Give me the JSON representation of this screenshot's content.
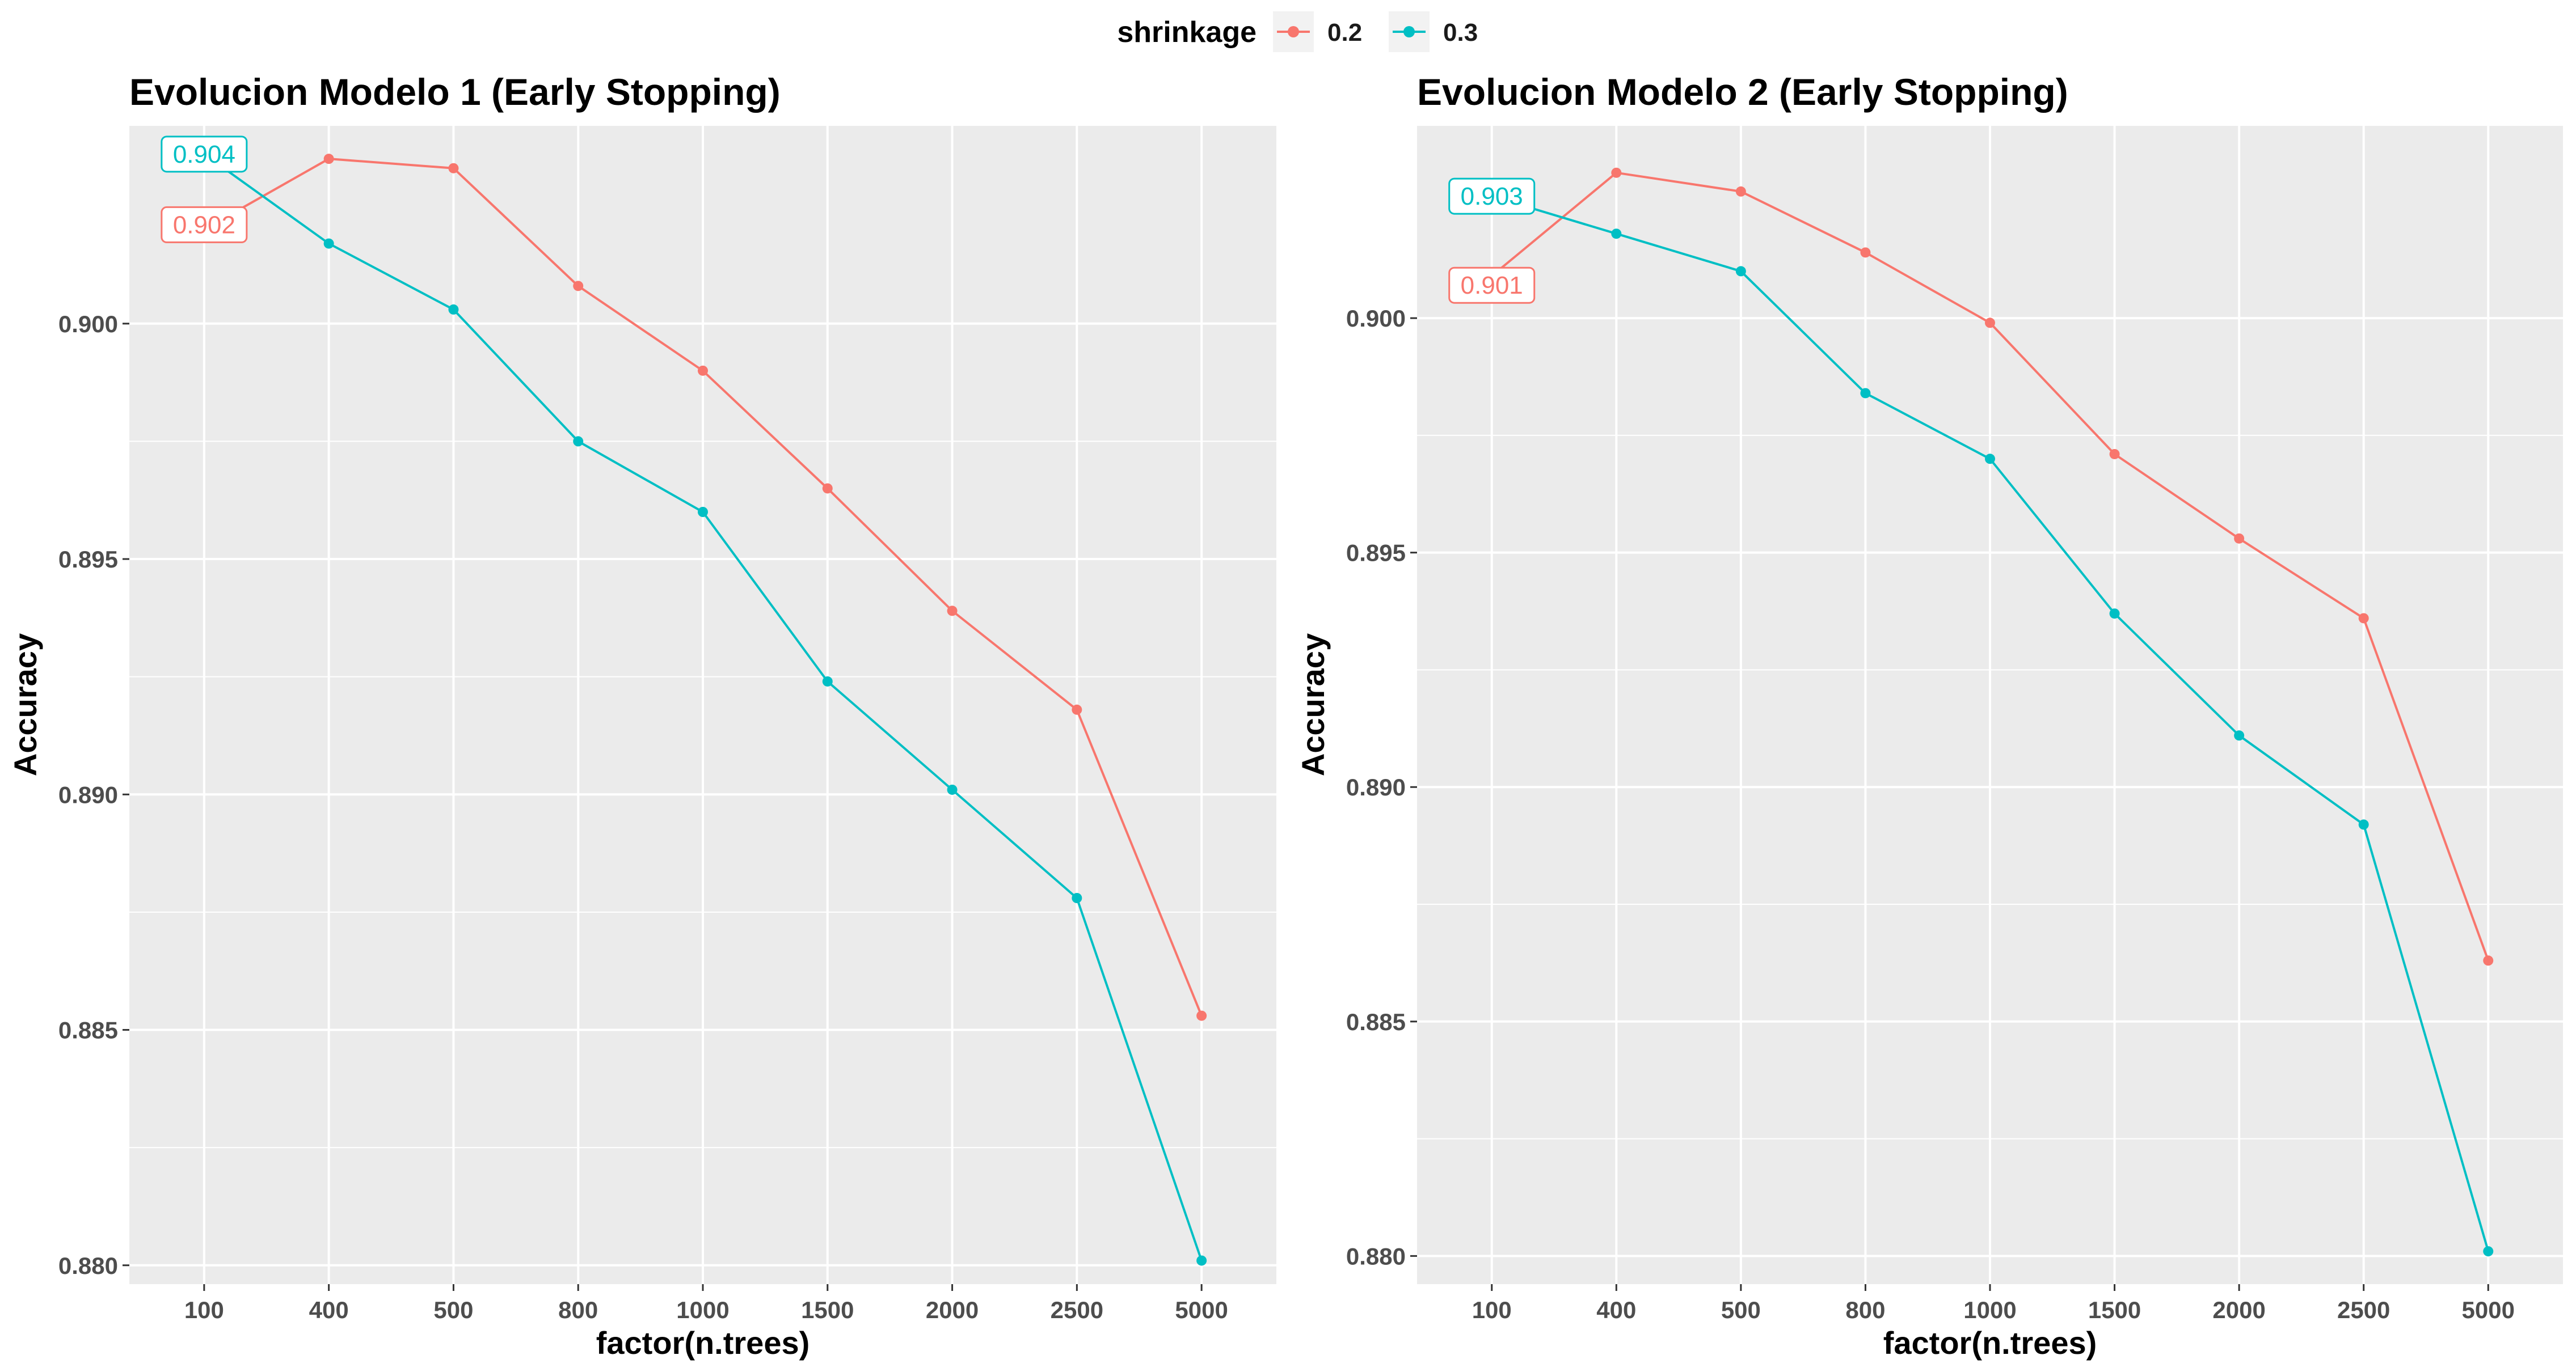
{
  "legend": {
    "title": "shrinkage",
    "placement": "top",
    "items": [
      {
        "label": "0.2",
        "color": "#F8766D"
      },
      {
        "label": "0.3",
        "color": "#00BFC4"
      }
    ]
  },
  "chart_data": [
    {
      "type": "line",
      "title": "Evolucion Modelo 1 (Early Stopping)",
      "xlabel": "factor(n.trees)",
      "ylabel": "Accuracy",
      "categories": [
        "100",
        "400",
        "500",
        "800",
        "1000",
        "1500",
        "2000",
        "2500",
        "5000"
      ],
      "ylim": [
        0.8796,
        0.9042
      ],
      "yticks": [
        0.88,
        0.885,
        0.89,
        0.895,
        0.9
      ],
      "ytick_labels": [
        "0.880",
        "0.885",
        "0.890",
        "0.895",
        "0.900"
      ],
      "grid": true,
      "series": [
        {
          "name": "0.2",
          "color": "#F8766D",
          "values": [
            0.902,
            0.9035,
            0.9033,
            0.9008,
            0.899,
            0.8965,
            0.8939,
            0.8918,
            0.8853
          ]
        },
        {
          "name": "0.3",
          "color": "#00BFC4",
          "values": [
            0.9036,
            0.9017,
            0.9003,
            0.8975,
            0.896,
            0.8924,
            0.8901,
            0.8878,
            0.8801
          ]
        }
      ],
      "annotations": [
        {
          "text": "0.904",
          "category": "100",
          "value": 0.9036,
          "series": "0.3"
        },
        {
          "text": "0.902",
          "category": "100",
          "value": 0.9021,
          "series": "0.2"
        }
      ]
    },
    {
      "type": "line",
      "title": "Evolucion Modelo 2 (Early Stopping)",
      "xlabel": "factor(n.trees)",
      "ylabel": "Accuracy",
      "categories": [
        "100",
        "400",
        "500",
        "800",
        "1000",
        "1500",
        "2000",
        "2500",
        "5000"
      ],
      "ylim": [
        0.8794,
        0.9041
      ],
      "yticks": [
        0.88,
        0.885,
        0.89,
        0.895,
        0.9
      ],
      "ytick_labels": [
        "0.880",
        "0.885",
        "0.890",
        "0.895",
        "0.900"
      ],
      "grid": true,
      "series": [
        {
          "name": "0.2",
          "color": "#F8766D",
          "values": [
            0.9009,
            0.9031,
            0.9027,
            0.9014,
            0.8999,
            0.8971,
            0.8953,
            0.8936,
            0.8863
          ]
        },
        {
          "name": "0.3",
          "color": "#00BFC4",
          "values": [
            0.9026,
            0.9018,
            0.901,
            0.8984,
            0.897,
            0.8937,
            0.8911,
            0.8892,
            0.8801
          ]
        }
      ],
      "annotations": [
        {
          "text": "0.903",
          "category": "100",
          "value": 0.9026,
          "series": "0.3"
        },
        {
          "text": "0.901",
          "category": "100",
          "value": 0.9007,
          "series": "0.2"
        }
      ]
    }
  ]
}
